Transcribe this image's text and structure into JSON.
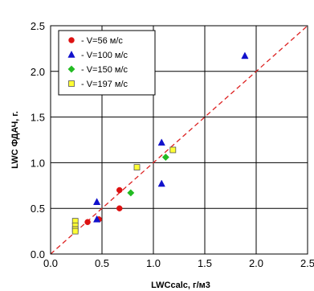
{
  "chart_data": {
    "type": "scatter",
    "title": "",
    "xlabel": "LWCcalc, г/м3",
    "ylabel": "LWC ФДАЧ, г.",
    "xlim": [
      0.0,
      2.5
    ],
    "ylim": [
      0.0,
      2.5
    ],
    "x_ticks": [
      "0.0",
      "0.5",
      "1.0",
      "1.5",
      "2.0",
      "2.5"
    ],
    "y_ticks": [
      "0.0",
      "0.5",
      "1.0",
      "1.5",
      "2.0",
      "2.5"
    ],
    "grid": true,
    "legend_position": "top-left",
    "reference_line": {
      "style": "dashed",
      "color": "#dd2222",
      "from": [
        0,
        0
      ],
      "to": [
        2.5,
        2.5
      ]
    },
    "series": [
      {
        "name": "- V=56 м/с",
        "marker": "circle",
        "color": "#dd1111",
        "points": [
          [
            0.36,
            0.35
          ],
          [
            0.47,
            0.38
          ],
          [
            0.67,
            0.7
          ],
          [
            0.67,
            0.5
          ]
        ]
      },
      {
        "name": "- V=100 м/с",
        "marker": "triangle",
        "color": "#1111cc",
        "points": [
          [
            0.45,
            0.57
          ],
          [
            0.45,
            0.38
          ],
          [
            1.08,
            1.22
          ],
          [
            1.08,
            0.77
          ],
          [
            1.89,
            2.17
          ]
        ]
      },
      {
        "name": "- V=150 м/с",
        "marker": "diamond",
        "color": "#22bb22",
        "points": [
          [
            0.78,
            0.67
          ],
          [
            1.12,
            1.06
          ]
        ]
      },
      {
        "name": "- V=197 м/с",
        "marker": "square",
        "color": "#ffff33",
        "points": [
          [
            0.84,
            0.95
          ],
          [
            1.19,
            1.14
          ],
          [
            0.24,
            0.36
          ],
          [
            0.24,
            0.31
          ],
          [
            0.24,
            0.27
          ],
          [
            0.24,
            0.25
          ]
        ]
      }
    ]
  }
}
